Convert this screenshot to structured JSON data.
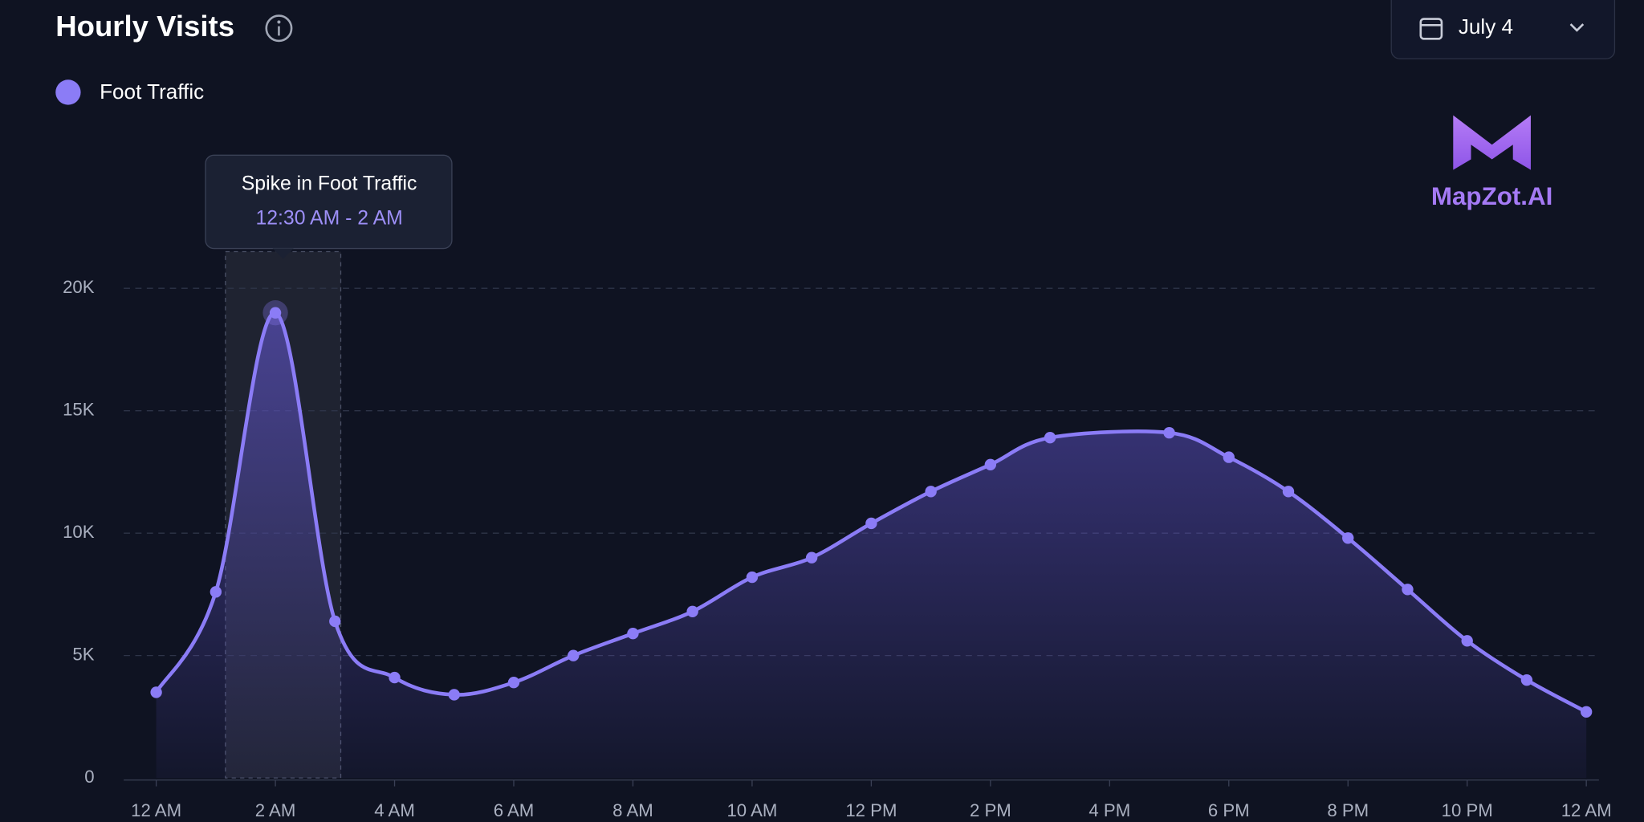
{
  "chart_data": {
    "type": "line",
    "title": "Hourly Visits",
    "date": "July 4",
    "brand": "MapZot.AI",
    "annotation": {
      "title": "Spike in Foot Traffic",
      "range": "12:30 AM - 2 AM"
    },
    "x": [
      0,
      1,
      2,
      3,
      4,
      5,
      6,
      7,
      8,
      9,
      10,
      11,
      12,
      13,
      14,
      15,
      17,
      18,
      19,
      20,
      21,
      22,
      23,
      24
    ],
    "series": [
      {
        "name": "Foot Traffic",
        "color": "#8b7cf6",
        "values": [
          3500,
          7600,
          19000,
          6400,
          4100,
          3400,
          3900,
          5000,
          5900,
          6800,
          8200,
          9000,
          10400,
          11700,
          12800,
          13900,
          14100,
          13100,
          11700,
          9800,
          7700,
          5600,
          4000,
          2700
        ]
      }
    ],
    "xlim": [
      0,
      24
    ],
    "xticks": [
      {
        "value": 0,
        "label": "12 AM"
      },
      {
        "value": 2,
        "label": "2 AM"
      },
      {
        "value": 4,
        "label": "4 AM"
      },
      {
        "value": 6,
        "label": "6 AM"
      },
      {
        "value": 8,
        "label": "8 AM"
      },
      {
        "value": 10,
        "label": "10 AM"
      },
      {
        "value": 12,
        "label": "12 PM"
      },
      {
        "value": 14,
        "label": "2 PM"
      },
      {
        "value": 16,
        "label": "4 PM"
      },
      {
        "value": 18,
        "label": "6 PM"
      },
      {
        "value": 20,
        "label": "8 PM"
      },
      {
        "value": 22,
        "label": "10 PM"
      },
      {
        "value": 24,
        "label": "12 AM"
      }
    ],
    "ylim": [
      0,
      20000
    ],
    "yticks": [
      0,
      {
        "value": 5000,
        "label": "5K"
      },
      {
        "value": 10000,
        "label": "10K"
      },
      {
        "value": 15000,
        "label": "15K"
      },
      {
        "value": 20000,
        "label": "20K"
      }
    ],
    "grid": true
  }
}
